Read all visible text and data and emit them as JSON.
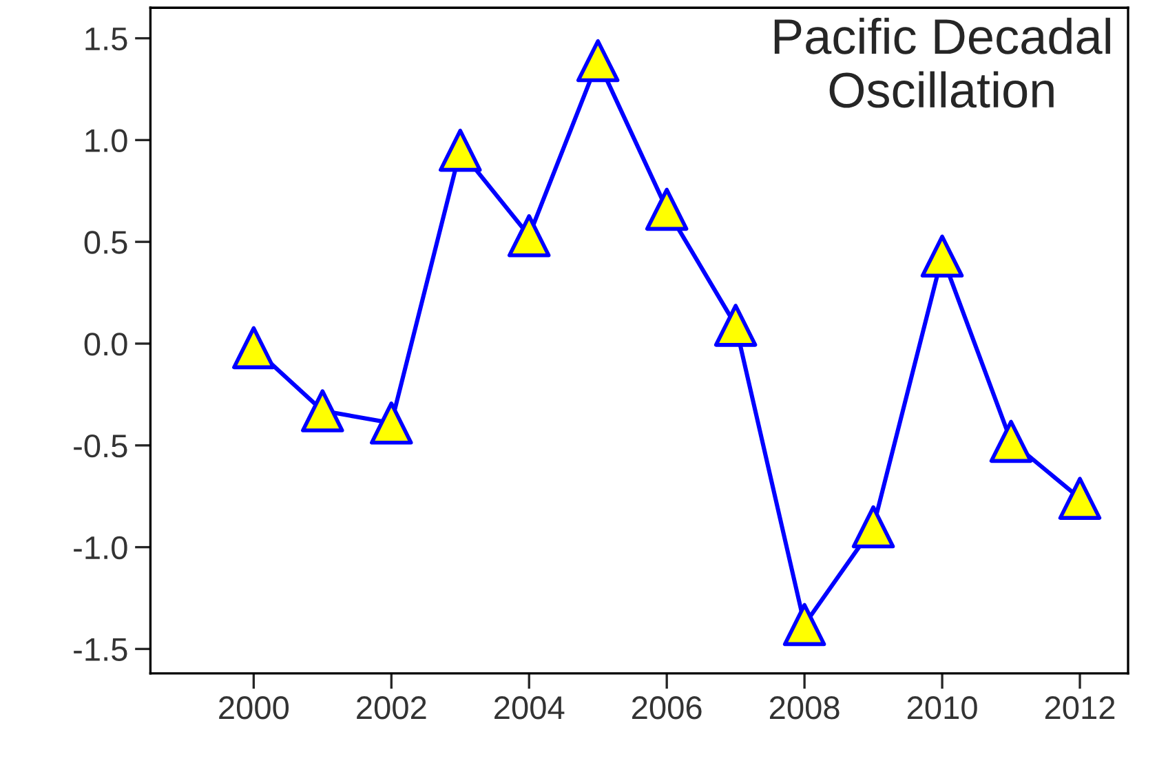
{
  "chart_data": {
    "type": "line",
    "x": [
      2000,
      2001,
      2002,
      2003,
      2004,
      2005,
      2006,
      2007,
      2008,
      2009,
      2010,
      2011,
      2012
    ],
    "series": [
      {
        "color": "#0000ff",
        "values": [
          -0.02,
          -0.33,
          -0.39,
          0.95,
          0.53,
          1.39,
          0.66,
          0.09,
          -1.38,
          -0.9,
          0.43,
          -0.48,
          -0.76
        ]
      }
    ],
    "xlim": [
      1998.5,
      2012.7
    ],
    "ylim": [
      -1.62,
      1.65
    ],
    "xticks": [
      2000,
      2002,
      2004,
      2006,
      2008,
      2010,
      2012
    ],
    "yticks": [
      {
        "value": -1.5,
        "label": "-1.5"
      },
      {
        "value": -1.0,
        "label": "-1.0"
      },
      {
        "value": -0.5,
        "label": "-0.5"
      },
      {
        "value": 0.0,
        "label": "0.0"
      },
      {
        "value": 0.5,
        "label": "0.5"
      },
      {
        "value": 1.0,
        "label": "1.0"
      },
      {
        "value": 1.5,
        "label": "1.5"
      }
    ],
    "annotations": [
      "Pacific Decadal\nOscillation"
    ],
    "marker": "triangle",
    "line_style": "solid",
    "grid": false
  }
}
